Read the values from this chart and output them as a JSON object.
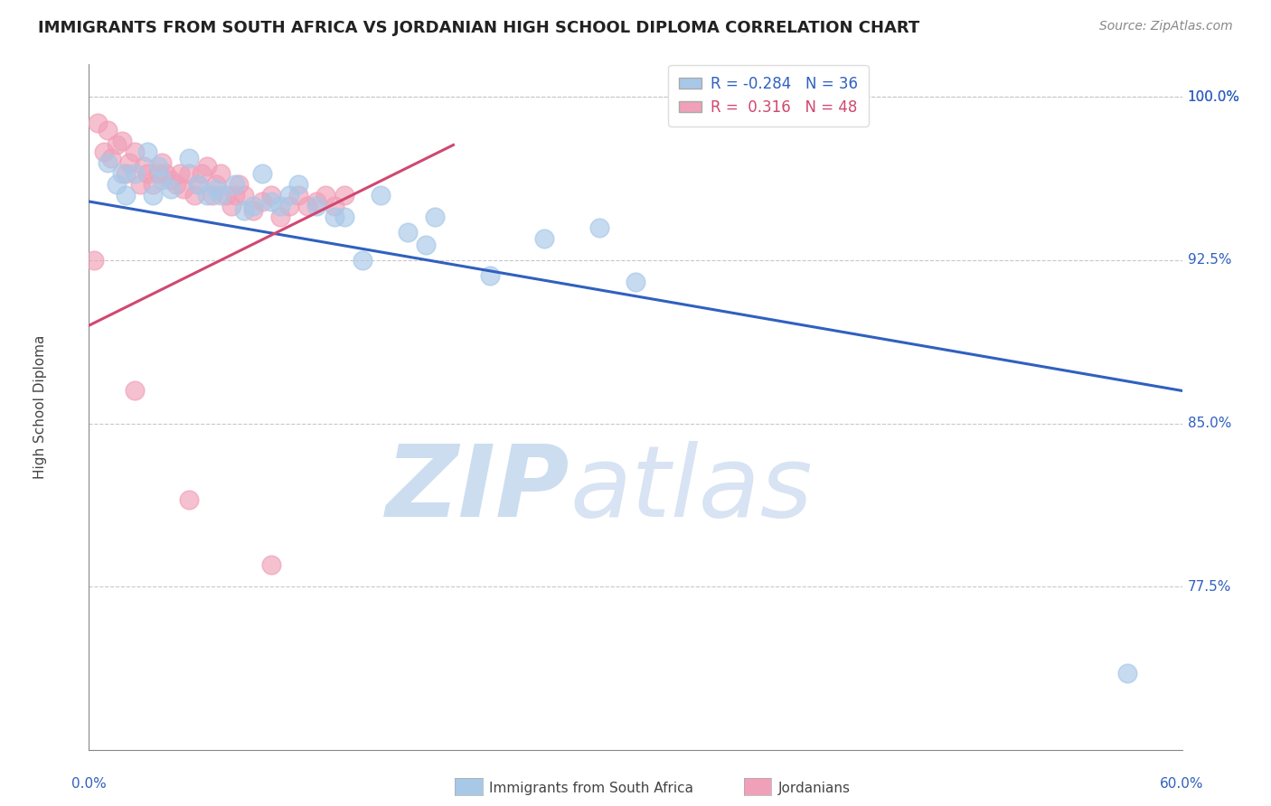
{
  "title": "IMMIGRANTS FROM SOUTH AFRICA VS JORDANIAN HIGH SCHOOL DIPLOMA CORRELATION CHART",
  "source": "Source: ZipAtlas.com",
  "ylabel": "High School Diploma",
  "xlim": [
    0.0,
    60.0
  ],
  "ylim": [
    70.0,
    101.5
  ],
  "yticks": [
    77.5,
    85.0,
    92.5,
    100.0
  ],
  "ytick_labels": [
    "77.5%",
    "85.0%",
    "92.5%",
    "100.0%"
  ],
  "blue_color": "#a8c8e8",
  "pink_color": "#f0a0b8",
  "blue_line_color": "#3060c0",
  "pink_line_color": "#d04870",
  "blue_line": {
    "x0": 0,
    "y0": 95.2,
    "x1": 60,
    "y1": 86.5
  },
  "pink_line": {
    "x0": 0,
    "y0": 89.5,
    "x1": 20,
    "y1": 97.8
  },
  "blue_scatter_x": [
    1.0,
    1.8,
    2.5,
    3.2,
    3.8,
    5.5,
    6.0,
    7.2,
    8.0,
    9.5,
    10.5,
    11.5,
    13.5,
    16.0,
    17.5,
    19.0,
    22.0,
    28.0,
    30.0,
    57.0,
    2.0,
    3.5,
    4.5,
    6.5,
    8.5,
    10.0,
    12.5,
    15.0,
    18.5,
    25.0,
    1.5,
    4.0,
    7.0,
    9.0,
    11.0,
    14.0
  ],
  "blue_scatter_y": [
    97.0,
    96.5,
    96.5,
    97.5,
    96.8,
    97.2,
    96.0,
    95.5,
    96.0,
    96.5,
    95.0,
    96.0,
    94.5,
    95.5,
    93.8,
    94.5,
    91.8,
    94.0,
    91.5,
    73.5,
    95.5,
    95.5,
    95.8,
    95.5,
    94.8,
    95.2,
    95.0,
    92.5,
    93.2,
    93.5,
    96.0,
    96.2,
    95.8,
    95.0,
    95.5,
    94.5
  ],
  "pink_scatter_x": [
    0.3,
    0.5,
    0.8,
    1.0,
    1.2,
    1.5,
    1.8,
    2.0,
    2.2,
    2.5,
    2.8,
    3.0,
    3.2,
    3.5,
    3.8,
    4.0,
    4.2,
    4.5,
    4.8,
    5.0,
    5.2,
    5.5,
    5.8,
    6.0,
    6.2,
    6.5,
    6.8,
    7.0,
    7.2,
    7.5,
    7.8,
    8.0,
    8.2,
    8.5,
    9.0,
    9.5,
    10.0,
    10.5,
    11.0,
    11.5,
    12.0,
    12.5,
    13.0,
    13.5,
    14.0,
    2.5,
    5.5,
    10.0
  ],
  "pink_scatter_y": [
    92.5,
    98.8,
    97.5,
    98.5,
    97.2,
    97.8,
    98.0,
    96.5,
    97.0,
    97.5,
    96.0,
    96.8,
    96.5,
    96.0,
    96.5,
    97.0,
    96.5,
    96.2,
    96.0,
    96.5,
    95.8,
    96.5,
    95.5,
    96.0,
    96.5,
    96.8,
    95.5,
    96.0,
    96.5,
    95.5,
    95.0,
    95.5,
    96.0,
    95.5,
    94.8,
    95.2,
    95.5,
    94.5,
    95.0,
    95.5,
    95.0,
    95.2,
    95.5,
    95.0,
    95.5,
    86.5,
    81.5,
    78.5
  ],
  "legend_r_blue": "-0.284",
  "legend_n_blue": "36",
  "legend_r_pink": "0.316",
  "legend_n_pink": "48"
}
